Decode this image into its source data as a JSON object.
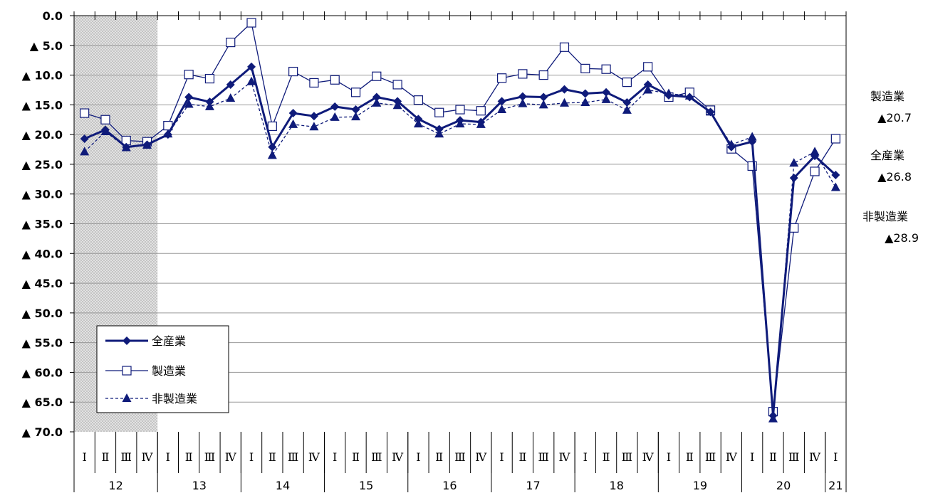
{
  "chart_data": {
    "type": "line",
    "ylim": [
      0,
      70
    ],
    "y_inverted": true,
    "y_ticks": [
      "0.0",
      "▲ 5.0",
      "▲ 10.0",
      "▲ 15.0",
      "▲ 20.0",
      "▲ 25.0",
      "▲ 30.0",
      "▲ 35.0",
      "▲ 40.0",
      "▲ 45.0",
      "▲ 50.0",
      "▲ 55.0",
      "▲ 60.0",
      "▲ 65.0",
      "▲ 70.0"
    ],
    "quarter_labels": [
      "Ⅰ",
      "Ⅱ",
      "Ⅲ",
      "Ⅳ",
      "Ⅰ",
      "Ⅱ",
      "Ⅲ",
      "Ⅳ",
      "Ⅰ",
      "Ⅱ",
      "Ⅲ",
      "Ⅳ",
      "Ⅰ",
      "Ⅱ",
      "Ⅲ",
      "Ⅳ",
      "Ⅰ",
      "Ⅱ",
      "Ⅲ",
      "Ⅳ",
      "Ⅰ",
      "Ⅱ",
      "Ⅲ",
      "Ⅳ",
      "Ⅰ",
      "Ⅱ",
      "Ⅲ",
      "Ⅳ",
      "Ⅰ",
      "Ⅱ",
      "Ⅲ",
      "Ⅳ",
      "Ⅰ",
      "Ⅱ",
      "Ⅲ",
      "Ⅳ",
      "Ⅰ"
    ],
    "years": [
      {
        "label": "12",
        "start": 0,
        "count": 4
      },
      {
        "label": "13",
        "start": 4,
        "count": 4
      },
      {
        "label": "14",
        "start": 8,
        "count": 4
      },
      {
        "label": "15",
        "start": 12,
        "count": 4
      },
      {
        "label": "16",
        "start": 16,
        "count": 4
      },
      {
        "label": "17",
        "start": 20,
        "count": 4
      },
      {
        "label": "18",
        "start": 24,
        "count": 4
      },
      {
        "label": "19",
        "start": 28,
        "count": 4
      },
      {
        "label": "20",
        "start": 32,
        "count": 4
      },
      {
        "label": "21",
        "start": 36,
        "count": 1
      }
    ],
    "shaded_quarters": [
      0,
      3
    ],
    "series": [
      {
        "name": "全産業",
        "style": "solid-bold",
        "marker": "diamond",
        "color": "#0f1b7a",
        "values": [
          20.7,
          19.2,
          22.1,
          21.7,
          20.0,
          13.7,
          14.5,
          11.6,
          8.6,
          22.1,
          16.4,
          16.9,
          15.3,
          15.8,
          13.7,
          14.4,
          17.4,
          19.1,
          17.6,
          17.9,
          14.4,
          13.6,
          13.7,
          12.4,
          13.1,
          12.9,
          14.6,
          11.6,
          13.4,
          13.7,
          16.2,
          22.1,
          21.2,
          67.3,
          27.3,
          23.6,
          26.8
        ]
      },
      {
        "name": "製造業",
        "style": "solid-thin",
        "marker": "square",
        "color": "#0f1b7a",
        "values": [
          16.4,
          17.5,
          21.0,
          21.2,
          18.5,
          9.9,
          10.6,
          4.5,
          1.2,
          18.6,
          9.4,
          11.3,
          10.8,
          12.9,
          10.2,
          11.6,
          14.2,
          16.3,
          15.8,
          16.0,
          10.5,
          9.8,
          10.0,
          5.3,
          8.9,
          9.0,
          11.2,
          8.6,
          13.7,
          12.9,
          15.9,
          22.4,
          25.3,
          66.6,
          35.7,
          26.2,
          20.7
        ]
      },
      {
        "name": "非製造業",
        "style": "dashed",
        "marker": "triangle",
        "color": "#0f1b7a",
        "values": [
          22.9,
          19.5,
          22.2,
          21.8,
          19.9,
          14.9,
          15.3,
          13.9,
          11.1,
          23.5,
          18.3,
          18.7,
          17.1,
          17.0,
          14.7,
          15.1,
          18.2,
          19.9,
          18.2,
          18.3,
          15.8,
          14.8,
          15.0,
          14.7,
          14.6,
          14.1,
          15.9,
          12.5,
          13.1,
          13.5,
          16.2,
          21.7,
          20.4,
          67.8,
          24.8,
          22.9,
          28.9
        ]
      }
    ],
    "end_labels": [
      {
        "name": "製造業",
        "value": "▲20.7"
      },
      {
        "name": "全産業",
        "value": "▲26.8"
      },
      {
        "name": "非製造業",
        "value": "▲28.9"
      }
    ],
    "legend": {
      "placement": "bottom-left",
      "entries": [
        "全産業",
        "製造業",
        "非製造業"
      ]
    },
    "grid": true
  }
}
